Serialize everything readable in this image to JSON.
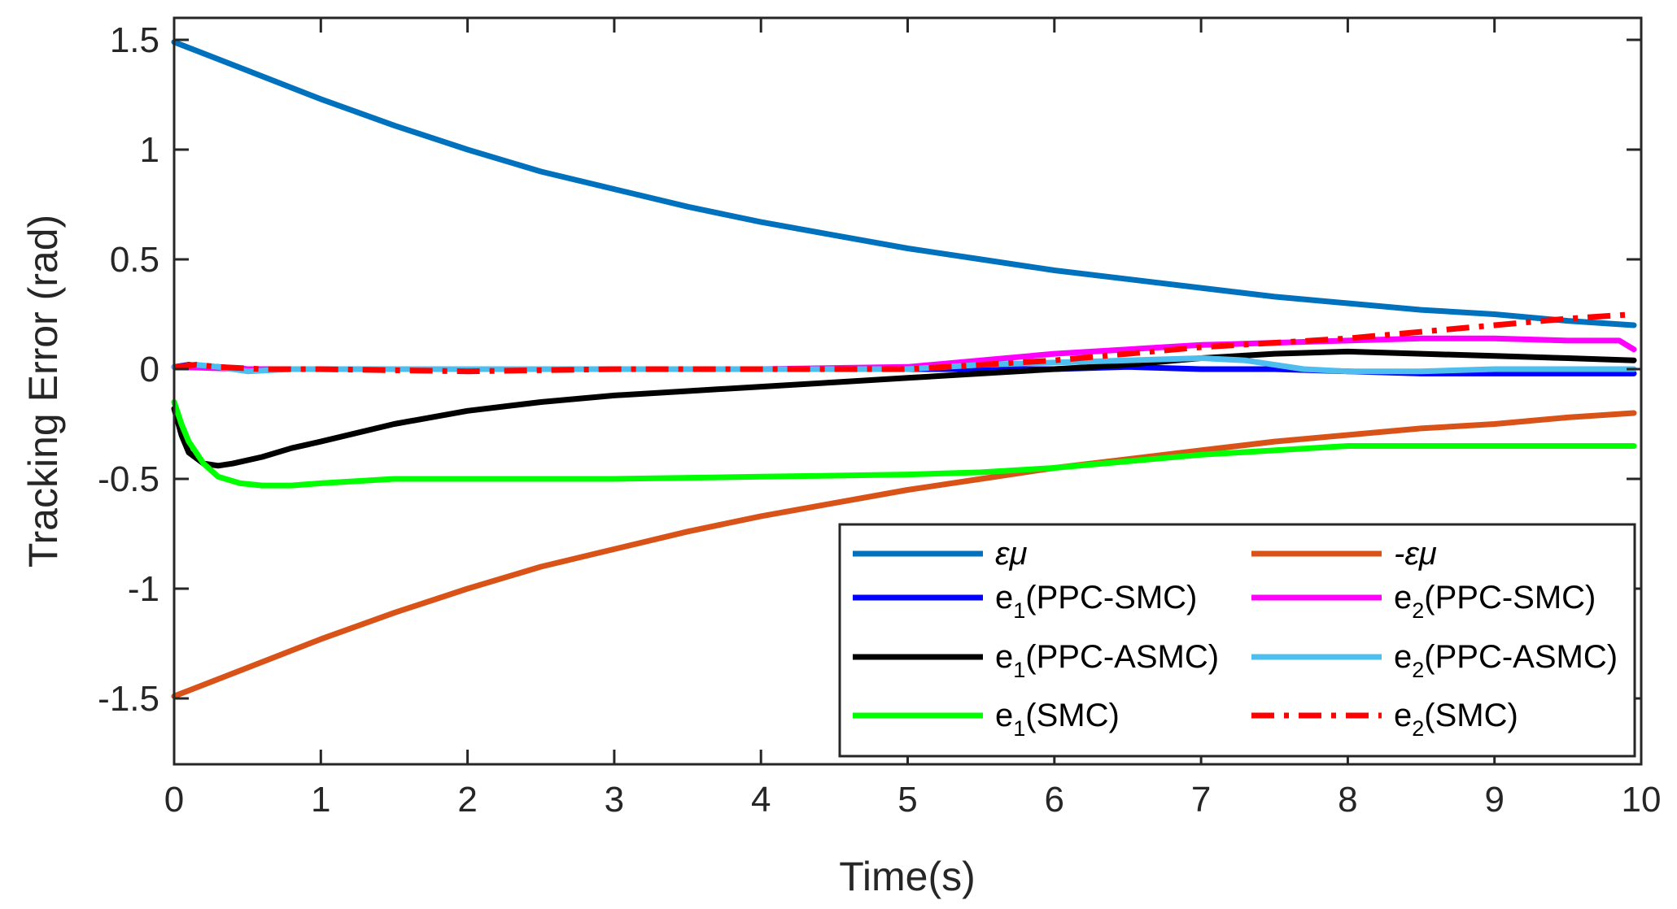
{
  "chart_data": {
    "type": "line",
    "title": "",
    "xlabel": "Time(s)",
    "ylabel": "Tracking Error (rad)",
    "xlim": [
      0,
      10
    ],
    "ylim": [
      -1.8,
      1.6
    ],
    "xticks": [
      0,
      1,
      2,
      3,
      4,
      5,
      6,
      7,
      8,
      9,
      10
    ],
    "yticks": [
      1.5,
      1,
      0.5,
      0,
      -0.5,
      -1,
      -1.5
    ],
    "xtick_labels": [
      "0",
      "1",
      "2",
      "3",
      "4",
      "5",
      "6",
      "7",
      "8",
      "9",
      "10"
    ],
    "ytick_labels": [
      "1.5",
      "1",
      "0.5",
      "0",
      "-0.5",
      "-1",
      "-1.5"
    ],
    "grid": false,
    "legend_position": "bottom-right",
    "series": [
      {
        "name": "εμ",
        "legend_main": "εμ",
        "legend_sub": "",
        "legend_tail": "",
        "italic": true,
        "color": "#0072BD",
        "dash": "solid",
        "x": [
          0,
          0.5,
          1,
          1.5,
          2,
          2.5,
          3,
          3.5,
          4,
          4.5,
          5,
          5.5,
          6,
          6.5,
          7,
          7.5,
          8,
          8.5,
          9,
          9.5,
          9.95
        ],
        "values": [
          1.49,
          1.36,
          1.23,
          1.11,
          1.0,
          0.9,
          0.82,
          0.74,
          0.67,
          0.61,
          0.55,
          0.5,
          0.45,
          0.41,
          0.37,
          0.33,
          0.3,
          0.27,
          0.25,
          0.22,
          0.2
        ]
      },
      {
        "name": "-εμ",
        "legend_main": "-εμ",
        "legend_sub": "",
        "legend_tail": "",
        "italic": true,
        "color": "#D95319",
        "dash": "solid",
        "x": [
          0,
          0.5,
          1,
          1.5,
          2,
          2.5,
          3,
          3.5,
          4,
          4.5,
          5,
          5.5,
          6,
          6.5,
          7,
          7.5,
          8,
          8.5,
          9,
          9.5,
          9.95
        ],
        "values": [
          -1.49,
          -1.36,
          -1.23,
          -1.11,
          -1.0,
          -0.9,
          -0.82,
          -0.74,
          -0.67,
          -0.61,
          -0.55,
          -0.5,
          -0.45,
          -0.41,
          -0.37,
          -0.33,
          -0.3,
          -0.27,
          -0.25,
          -0.22,
          -0.2
        ]
      },
      {
        "name": "e1(PPC-SMC)",
        "legend_main": "e",
        "legend_sub": "1",
        "legend_tail": "(PPC-SMC)",
        "italic": false,
        "color": "#0000FF",
        "dash": "solid",
        "x": [
          0,
          0.1,
          0.3,
          0.5,
          1,
          2,
          3,
          4,
          5,
          5.5,
          6,
          6.5,
          7,
          7.5,
          8,
          8.5,
          9,
          9.5,
          9.95
        ],
        "values": [
          0.01,
          0.02,
          0.01,
          0.0,
          0.0,
          0.0,
          0.0,
          0.0,
          0.0,
          0.0,
          0.0,
          0.01,
          0.0,
          0.0,
          -0.01,
          -0.02,
          -0.02,
          -0.02,
          -0.02
        ]
      },
      {
        "name": "e2(PPC-SMC)",
        "legend_main": "e",
        "legend_sub": "2",
        "legend_tail": "(PPC-SMC)",
        "italic": false,
        "color": "#FF00FF",
        "dash": "solid",
        "x": [
          0,
          0.5,
          1,
          2,
          3,
          4,
          5,
          5.5,
          6,
          6.5,
          7,
          7.5,
          8,
          8.5,
          9,
          9.5,
          9.85,
          9.95
        ],
        "values": [
          0.01,
          0.0,
          0.0,
          0.0,
          0.0,
          0.0,
          0.01,
          0.04,
          0.07,
          0.09,
          0.11,
          0.12,
          0.13,
          0.14,
          0.14,
          0.13,
          0.13,
          0.09
        ]
      },
      {
        "name": "e1(PPC-ASMC)",
        "legend_main": "e",
        "legend_sub": "1",
        "legend_tail": "(PPC-ASMC)",
        "italic": false,
        "color": "#000000",
        "dash": "solid",
        "x": [
          0,
          0.05,
          0.1,
          0.2,
          0.3,
          0.4,
          0.6,
          0.8,
          1.0,
          1.5,
          2,
          2.5,
          3,
          3.5,
          4,
          4.5,
          5,
          5.5,
          6,
          6.5,
          7,
          7.5,
          8,
          8.5,
          9,
          9.5,
          9.95
        ],
        "values": [
          -0.18,
          -0.3,
          -0.38,
          -0.43,
          -0.44,
          -0.43,
          -0.4,
          -0.36,
          -0.33,
          -0.25,
          -0.19,
          -0.15,
          -0.12,
          -0.1,
          -0.08,
          -0.06,
          -0.04,
          -0.02,
          0.0,
          0.02,
          0.05,
          0.07,
          0.08,
          0.07,
          0.06,
          0.05,
          0.04
        ]
      },
      {
        "name": "e2(PPC-ASMC)",
        "legend_main": "e",
        "legend_sub": "2",
        "legend_tail": "(PPC-ASMC)",
        "italic": false,
        "color": "#4DBEEE",
        "dash": "solid",
        "x": [
          0,
          0.15,
          0.3,
          0.5,
          0.8,
          1,
          2,
          3,
          4,
          5,
          5.5,
          6,
          6.5,
          7,
          7.3,
          7.7,
          8,
          8.5,
          9,
          9.5,
          9.95
        ],
        "values": [
          0.01,
          0.02,
          0.01,
          -0.01,
          0.0,
          0.0,
          0.0,
          0.0,
          0.0,
          0.0,
          0.02,
          0.03,
          0.04,
          0.05,
          0.04,
          0.0,
          -0.01,
          -0.01,
          0.0,
          0.0,
          0.0
        ]
      },
      {
        "name": "e1(SMC)",
        "legend_main": "e",
        "legend_sub": "1",
        "legend_tail": "(SMC)",
        "italic": false,
        "color": "#00FF00",
        "dash": "solid",
        "x": [
          0,
          0.05,
          0.1,
          0.2,
          0.3,
          0.45,
          0.6,
          0.8,
          1.0,
          1.5,
          2,
          3,
          4,
          5,
          5.5,
          6,
          6.5,
          7,
          7.5,
          8,
          8.5,
          9,
          9.5,
          9.95
        ],
        "values": [
          -0.15,
          -0.25,
          -0.33,
          -0.43,
          -0.49,
          -0.52,
          -0.53,
          -0.53,
          -0.52,
          -0.5,
          -0.5,
          -0.5,
          -0.49,
          -0.48,
          -0.47,
          -0.45,
          -0.42,
          -0.39,
          -0.37,
          -0.35,
          -0.35,
          -0.35,
          -0.35,
          -0.35
        ]
      },
      {
        "name": "e2(SMC)",
        "legend_main": "e",
        "legend_sub": "2",
        "legend_tail": "(SMC)",
        "italic": false,
        "color": "#FF0000",
        "dash": "dashdot",
        "x": [
          0,
          0.15,
          0.3,
          0.6,
          1,
          2,
          3,
          4,
          5,
          5.5,
          6,
          6.5,
          7,
          7.5,
          8,
          8.5,
          9,
          9.5,
          9.95
        ],
        "values": [
          0.01,
          0.02,
          0.01,
          0.0,
          0.0,
          -0.01,
          0.0,
          0.0,
          0.0,
          0.02,
          0.04,
          0.07,
          0.1,
          0.12,
          0.14,
          0.17,
          0.2,
          0.23,
          0.25
        ]
      }
    ]
  }
}
